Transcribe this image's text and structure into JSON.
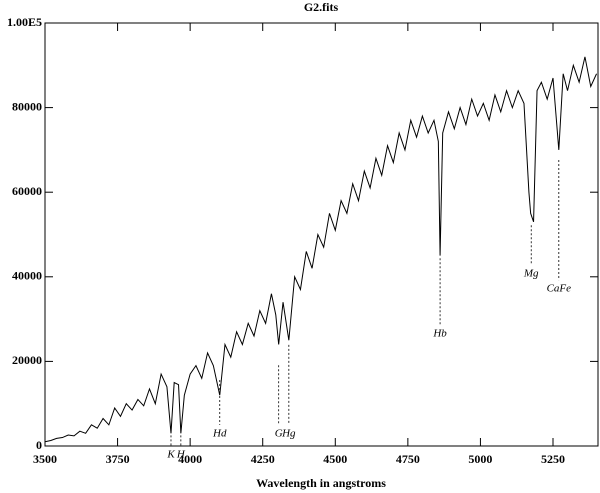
{
  "chart_data": {
    "type": "line",
    "title": "G2.fits",
    "x_label": "Wavelength in angstroms",
    "xlim": [
      3500,
      5405
    ],
    "ylim": [
      0,
      100000
    ],
    "xticks": [
      3500,
      3750,
      4000,
      4250,
      4500,
      4750,
      5000,
      5250
    ],
    "yticks": [
      0,
      20000,
      40000,
      60000,
      80000,
      {
        "value": 100000,
        "label": "1.00E5"
      }
    ],
    "color": "#000000",
    "x": [
      3500,
      3520,
      3540,
      3560,
      3580,
      3600,
      3620,
      3640,
      3660,
      3680,
      3700,
      3720,
      3740,
      3760,
      3780,
      3800,
      3820,
      3840,
      3860,
      3880,
      3900,
      3920,
      3934,
      3945,
      3960,
      3968,
      3980,
      4000,
      4020,
      4040,
      4060,
      4080,
      4102,
      4120,
      4140,
      4160,
      4180,
      4200,
      4220,
      4240,
      4260,
      4280,
      4295,
      4305,
      4320,
      4340,
      4360,
      4380,
      4400,
      4420,
      4440,
      4460,
      4480,
      4500,
      4520,
      4540,
      4560,
      4580,
      4600,
      4620,
      4640,
      4660,
      4680,
      4700,
      4720,
      4740,
      4760,
      4780,
      4800,
      4820,
      4840,
      4855,
      4861,
      4870,
      4890,
      4910,
      4930,
      4950,
      4970,
      4990,
      5010,
      5030,
      5050,
      5070,
      5090,
      5110,
      5130,
      5150,
      5167,
      5173,
      5183,
      5195,
      5210,
      5230,
      5250,
      5270,
      5285,
      5300,
      5320,
      5340,
      5360,
      5380,
      5400
    ],
    "values": [
      1000,
      1300,
      1800,
      2000,
      2600,
      2400,
      3500,
      3000,
      5000,
      4200,
      6500,
      5000,
      9000,
      7000,
      10000,
      8500,
      11000,
      9500,
      13500,
      10000,
      17000,
      14000,
      3000,
      15000,
      14500,
      3000,
      12000,
      17000,
      19000,
      16000,
      22000,
      19000,
      12000,
      24000,
      21000,
      27000,
      24000,
      29000,
      26000,
      32000,
      29000,
      36000,
      31000,
      24000,
      34000,
      25000,
      40000,
      37000,
      46000,
      42000,
      50000,
      47000,
      55000,
      51000,
      58000,
      55000,
      62000,
      58000,
      65000,
      61000,
      68000,
      64000,
      71000,
      67000,
      74000,
      70000,
      77000,
      73000,
      78000,
      74000,
      77000,
      72000,
      45000,
      74000,
      79000,
      75000,
      80000,
      76000,
      82000,
      78000,
      81000,
      77000,
      83000,
      79000,
      84000,
      80000,
      84000,
      81000,
      60000,
      55000,
      53000,
      84000,
      86000,
      82000,
      87000,
      70000,
      88000,
      84000,
      90000,
      86000,
      92000,
      85000,
      88000
    ],
    "annotations": [
      {
        "text": "K",
        "x": 3934,
        "y_top": 2500,
        "y_bottom": 0
      },
      {
        "text": "H",
        "x": 3968,
        "y_top": 2500,
        "y_bottom": 0
      },
      {
        "text": "Hd",
        "x": 4102,
        "y_top": 15600,
        "y_bottom": 5000
      },
      {
        "text": "G",
        "x": 4305,
        "y_top": 19100,
        "y_bottom": 5000
      },
      {
        "text": "Hg",
        "x": 4340,
        "y_top": 23900,
        "y_bottom": 5000
      },
      {
        "text": "Hb",
        "x": 4861,
        "y_top": 44400,
        "y_bottom": 28600
      },
      {
        "text": "Mg",
        "x": 5175,
        "y_top": 52200,
        "y_bottom": 42800
      },
      {
        "text": "CaFe",
        "x": 5270,
        "y_top": 67600,
        "y_bottom": 39200
      }
    ]
  }
}
